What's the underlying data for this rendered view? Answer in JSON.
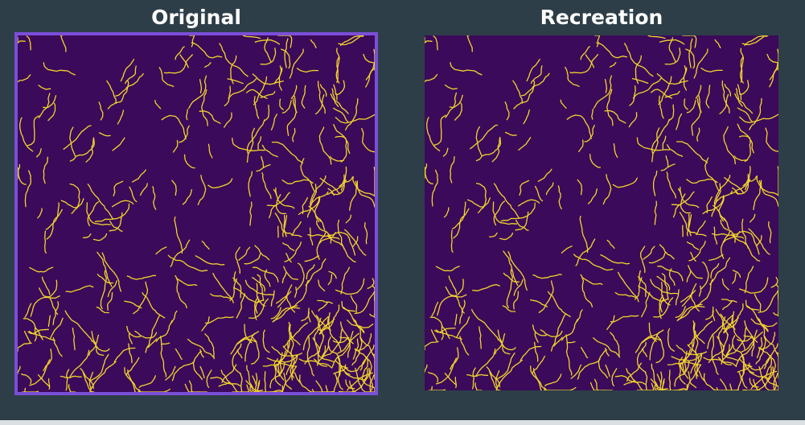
{
  "panels": [
    {
      "id": "original",
      "title": "Original",
      "selected": true
    },
    {
      "id": "recreation",
      "title": "Recreation",
      "selected": false
    }
  ],
  "colors": {
    "background": "#2d3e48",
    "plot_background": "#3b0a5a",
    "edge": "#f2d52b",
    "selection_border": "#7a4fd8"
  }
}
